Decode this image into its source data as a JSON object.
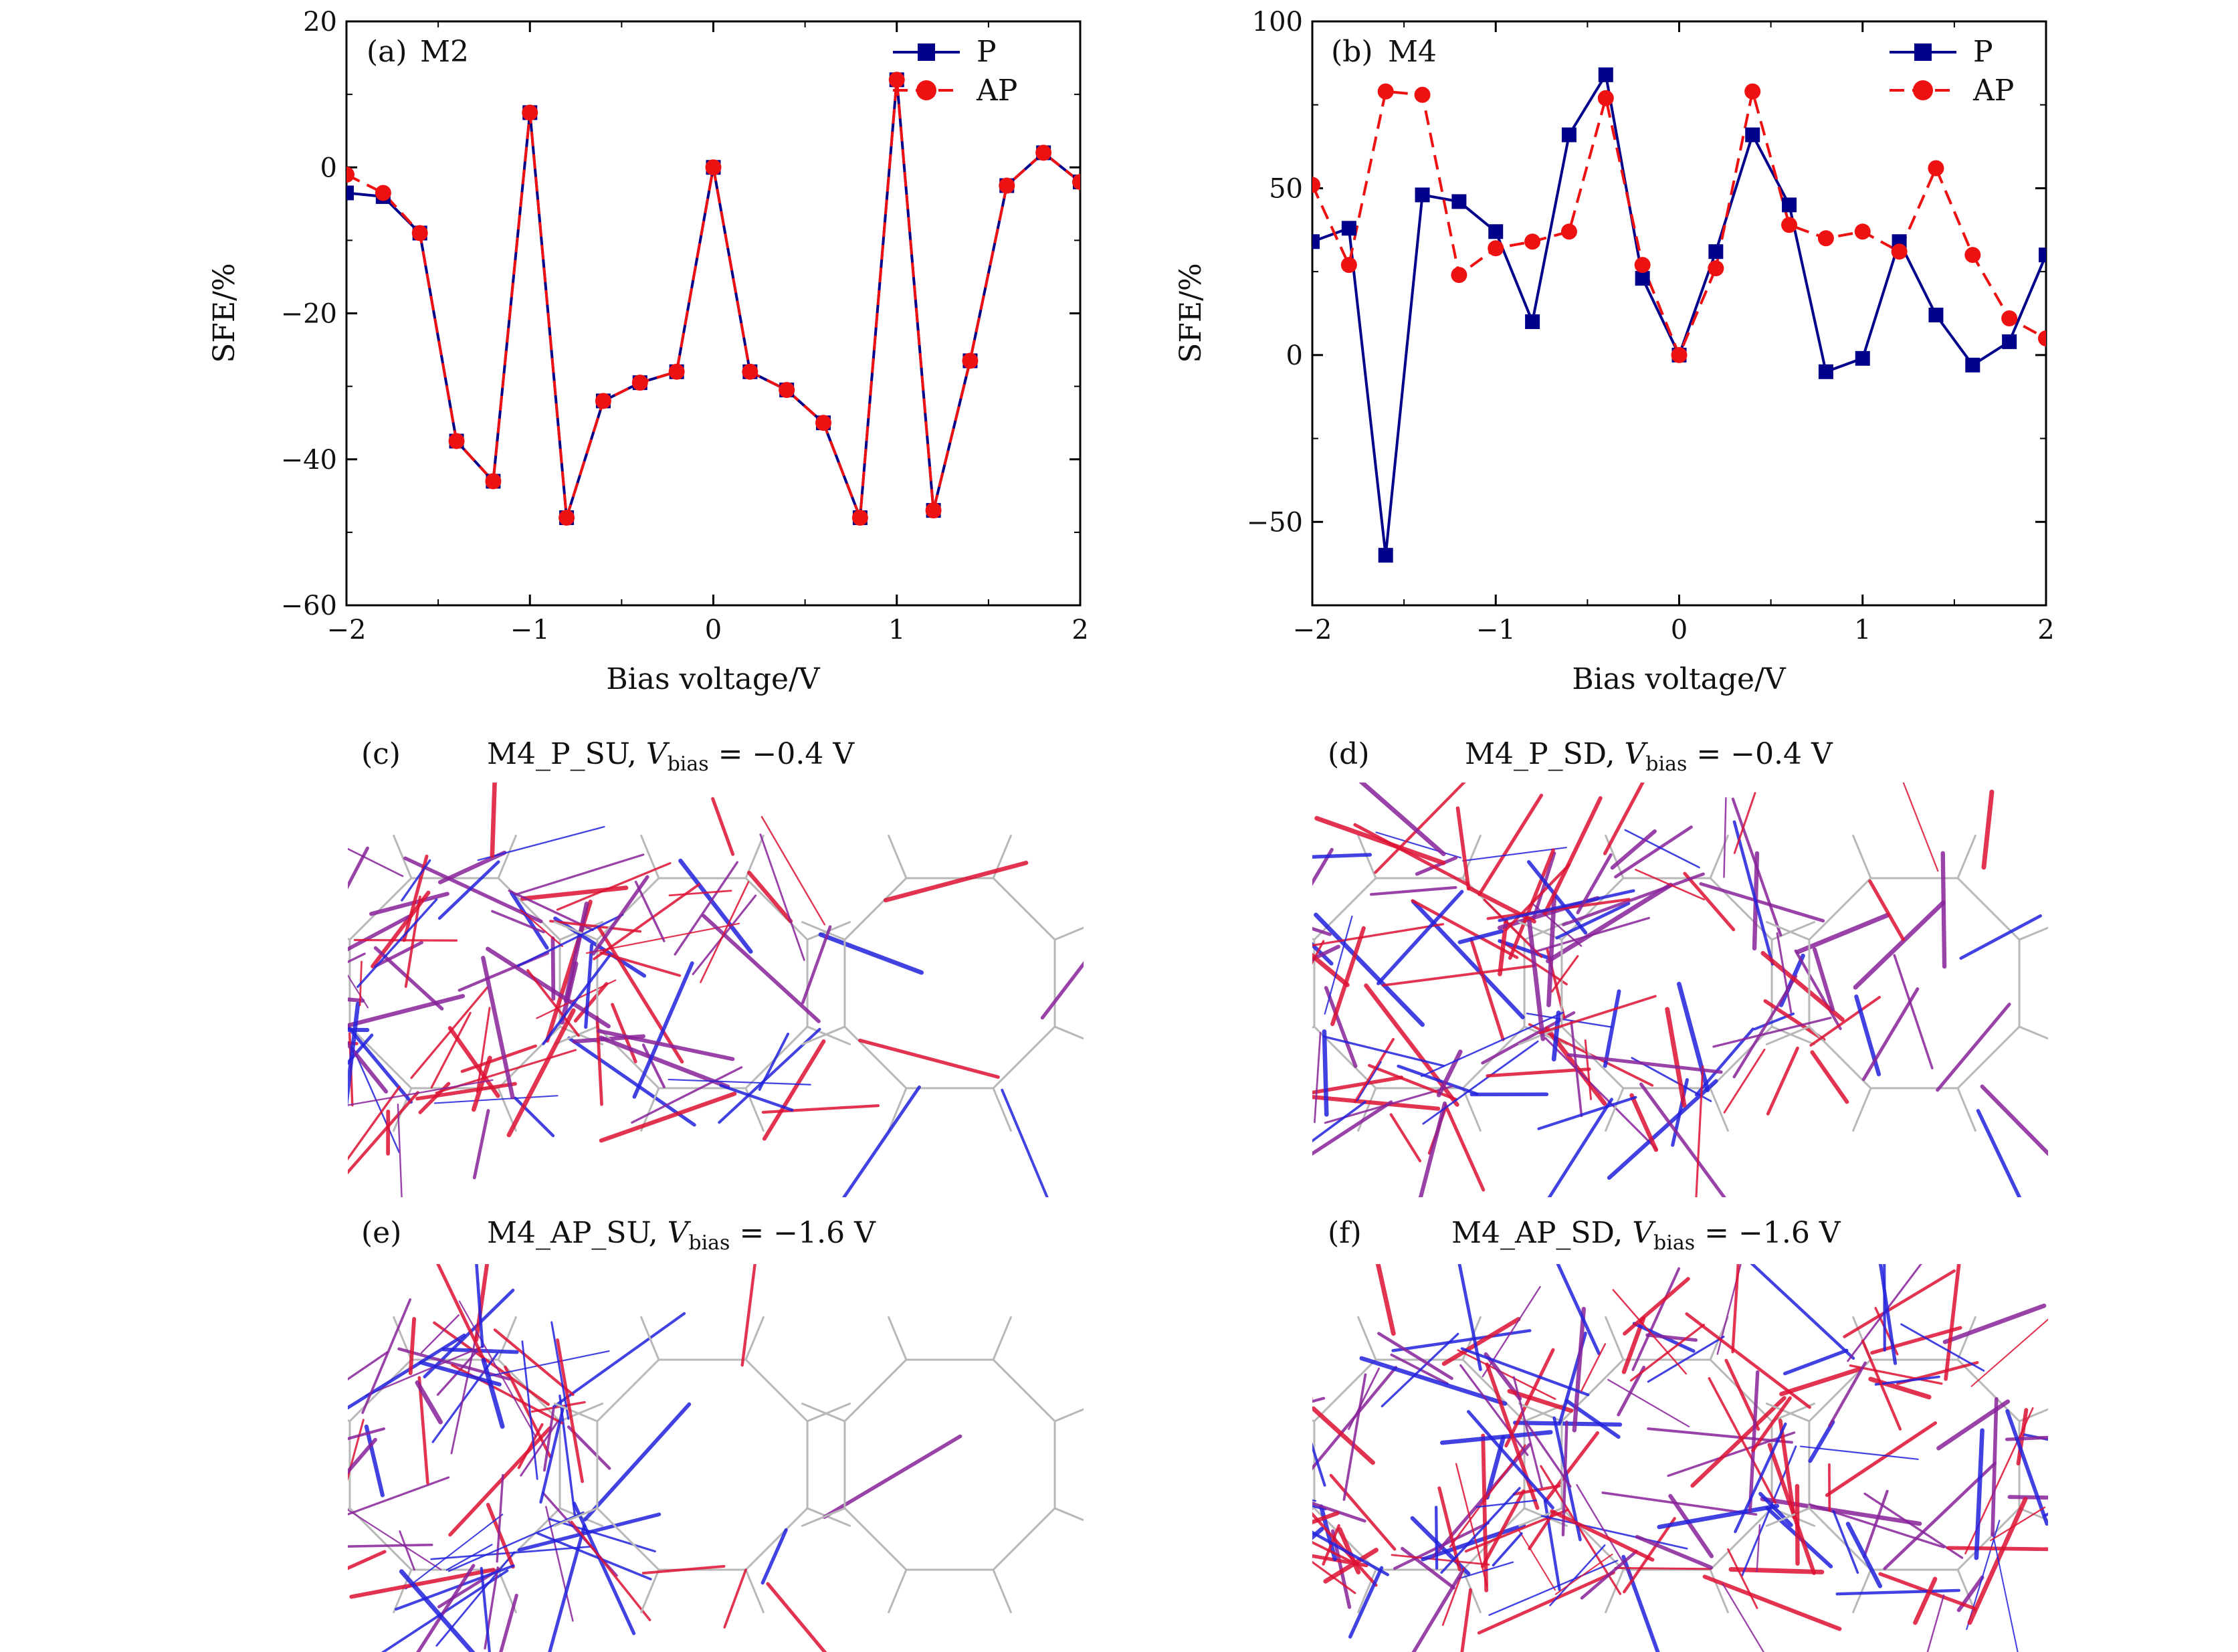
{
  "colors": {
    "P": "#00008b",
    "AP": "#ee1111",
    "spin_up_current": "#2222dd",
    "spin_down_current": "#dd1133",
    "mixed_current": "#882299",
    "lattice": "#b8b8b8"
  },
  "chart_data": [
    {
      "type": "line",
      "panel": "(a)",
      "tag": "M2",
      "xlabel": "Bias voltage/V",
      "ylabel": "SFE/%",
      "xlim": [
        -2,
        2
      ],
      "ylim": [
        -60,
        20
      ],
      "xticks": [
        -2,
        -1,
        0,
        1,
        2
      ],
      "xtick_labels": [
        "−2",
        "−1",
        "0",
        "1",
        "2"
      ],
      "yticks": [
        -60,
        -40,
        -20,
        0,
        20
      ],
      "ytick_labels": [
        "−60",
        "−40",
        "−20",
        "0",
        "20"
      ],
      "legend_position": "top-right",
      "x": [
        -2.0,
        -1.8,
        -1.6,
        -1.4,
        -1.2,
        -1.0,
        -0.8,
        -0.6,
        -0.4,
        -0.2,
        0.0,
        0.2,
        0.4,
        0.6,
        0.8,
        1.0,
        1.2,
        1.4,
        1.6,
        1.8,
        2.0
      ],
      "series": [
        {
          "name": "P",
          "marker": "square",
          "style": "solid",
          "values": [
            -3.5,
            -4,
            -9,
            -37.5,
            -43,
            7.5,
            -48,
            -32,
            -29.5,
            -28,
            0,
            -28,
            -30.5,
            -35,
            -48,
            12,
            -47,
            -26.5,
            -2.5,
            2,
            -2
          ]
        },
        {
          "name": "AP",
          "marker": "circle",
          "style": "dashed",
          "values": [
            -1,
            -3.5,
            -9,
            -37.5,
            -43,
            7.5,
            -48,
            -32,
            -29.5,
            -28,
            0,
            -28,
            -30.5,
            -35,
            -48,
            12,
            -47,
            -26.5,
            -2.5,
            2,
            -2
          ]
        }
      ]
    },
    {
      "type": "line",
      "panel": "(b)",
      "tag": "M4",
      "xlabel": "Bias voltage/V",
      "ylabel": "SFE/%",
      "xlim": [
        -2,
        2
      ],
      "ylim": [
        -75,
        100
      ],
      "xticks": [
        -2,
        -1,
        0,
        1,
        2
      ],
      "xtick_labels": [
        "−2",
        "−1",
        "0",
        "1",
        "2"
      ],
      "yticks": [
        -50,
        0,
        50,
        100
      ],
      "ytick_labels": [
        "−50",
        "0",
        "50",
        "100"
      ],
      "legend_position": "top-right",
      "x": [
        -2.0,
        -1.8,
        -1.6,
        -1.4,
        -1.2,
        -1.0,
        -0.8,
        -0.6,
        -0.4,
        -0.2,
        0.0,
        0.2,
        0.4,
        0.6,
        0.8,
        1.0,
        1.2,
        1.4,
        1.6,
        1.8,
        2.0
      ],
      "series": [
        {
          "name": "P",
          "marker": "square",
          "style": "solid",
          "values": [
            34,
            38,
            -60,
            48,
            46,
            37,
            10,
            66,
            84,
            23,
            0,
            31,
            66,
            45,
            -5,
            -1,
            34,
            12,
            -3,
            4,
            30
          ]
        },
        {
          "name": "AP",
          "marker": "circle",
          "style": "dashed",
          "values": [
            51,
            27,
            79,
            78,
            24,
            32,
            34,
            37,
            77,
            27,
            0,
            26,
            79,
            39,
            35,
            37,
            31,
            56,
            30,
            11,
            5
          ]
        }
      ]
    }
  ],
  "current_panels": [
    {
      "label": "(c)",
      "title_prefix": "M4_P_SU, ",
      "v_symbol": "V",
      "v_sub": "bias",
      "title_suffix": " = −0.4 V"
    },
    {
      "label": "(d)",
      "title_prefix": "M4_P_SD, ",
      "v_symbol": "V",
      "v_sub": "bias",
      "title_suffix": " = −0.4 V"
    },
    {
      "label": "(e)",
      "title_prefix": "M4_AP_SU, ",
      "v_symbol": "V",
      "v_sub": "bias",
      "title_suffix": " = −1.6 V"
    },
    {
      "label": "(f)",
      "title_prefix": "M4_AP_SD, ",
      "v_symbol": "V",
      "v_sub": "bias",
      "title_suffix": " = −1.6 V"
    }
  ]
}
